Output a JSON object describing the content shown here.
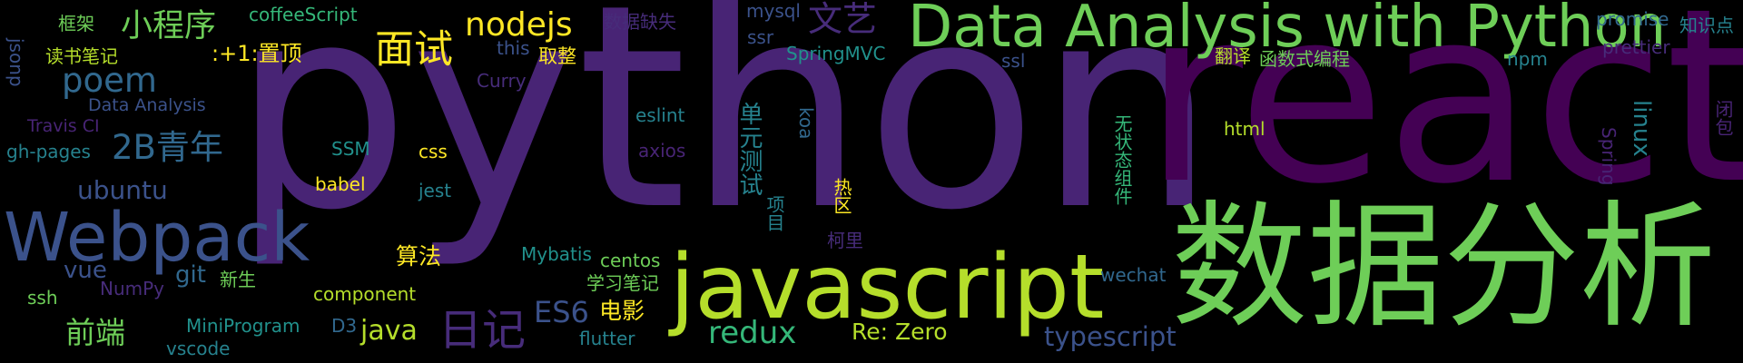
{
  "palette": {
    "background": "#000000",
    "dark_purple": "#482475",
    "deep_purple": "#440154",
    "purple": "#472c7a",
    "indigo": "#3b528b",
    "blue": "#31688e",
    "teal": "#26828e",
    "teal_green": "#21918c",
    "green": "#35b779",
    "light_green": "#6ece58",
    "lime": "#b5de2b",
    "yellow": "#fde725"
  },
  "words": [
    {
      "text": "python",
      "color": "#482475"
    },
    {
      "text": "react",
      "color": "#440154"
    },
    {
      "text": "数据分析",
      "color": "#6ece58"
    },
    {
      "text": "javascript",
      "color": "#b5de2b"
    },
    {
      "text": "Data Analysis with Python",
      "color": "#6ece58"
    },
    {
      "text": "Webpack",
      "color": "#3b528b"
    },
    {
      "text": "poem",
      "color": "#31688e"
    },
    {
      "text": "面试",
      "color": "#fde725"
    },
    {
      "text": "nodejs",
      "color": "#fde725"
    },
    {
      "text": "小程序",
      "color": "#6ece58"
    },
    {
      "text": "文艺",
      "color": "#472c7a"
    },
    {
      "text": "2B青年",
      "color": "#31688e"
    },
    {
      "text": "日记",
      "color": "#472c7a"
    },
    {
      "text": "ES6",
      "color": "#3b528b"
    },
    {
      "text": "redux",
      "color": "#35b779"
    },
    {
      "text": "java",
      "color": "#b5de2b"
    },
    {
      "text": "typescript",
      "color": "#3b528b"
    },
    {
      "text": "Re: Zero",
      "color": "#b5de2b"
    },
    {
      "text": "前端",
      "color": "#6ece58"
    },
    {
      "text": "ubuntu",
      "color": "#3b528b"
    },
    {
      "text": "vue",
      "color": "#3b528b"
    },
    {
      "text": "git",
      "color": "#31688e"
    },
    {
      "text": "算法",
      "color": "#fde725"
    },
    {
      "text": "电影",
      "color": "#fde725"
    },
    {
      "text": "框架",
      "color": "#6ece58"
    },
    {
      "text": "coffeeScript",
      "color": "#35b779"
    },
    {
      "text": "读书笔记",
      "color": "#b5de2b"
    },
    {
      "text": ":+1:置顶",
      "color": "#fde725"
    },
    {
      "text": "this",
      "color": "#3b528b"
    },
    {
      "text": "取整",
      "color": "#fde725"
    },
    {
      "text": "Curry",
      "color": "#472c7a"
    },
    {
      "text": "数据缺失",
      "color": "#472c7a"
    },
    {
      "text": "mysql",
      "color": "#3b528b"
    },
    {
      "text": "ssr",
      "color": "#3b528b"
    },
    {
      "text": "SpringMVC",
      "color": "#21918c"
    },
    {
      "text": "ssl",
      "color": "#3b528b"
    },
    {
      "text": "翻译",
      "color": "#b5de2b"
    },
    {
      "text": "函数式编程",
      "color": "#6ece58"
    },
    {
      "text": "npm",
      "color": "#26828e"
    },
    {
      "text": "promise",
      "color": "#31688e"
    },
    {
      "text": "知识点",
      "color": "#26828e"
    },
    {
      "text": "prettier",
      "color": "#472c7a"
    },
    {
      "text": "jsonp",
      "color": "#3b528b"
    },
    {
      "text": "Data Analysis",
      "color": "#3b528b"
    },
    {
      "text": "Travis CI",
      "color": "#482475"
    },
    {
      "text": "gh-pages",
      "color": "#26828e"
    },
    {
      "text": "SSM",
      "color": "#21918c"
    },
    {
      "text": "css",
      "color": "#fde725"
    },
    {
      "text": "eslint",
      "color": "#26828e"
    },
    {
      "text": "axios",
      "color": "#482475"
    },
    {
      "text": "单元测试",
      "color": "#26828e"
    },
    {
      "text": "koa",
      "color": "#31688e"
    },
    {
      "text": "项目",
      "color": "#26828e"
    },
    {
      "text": "html",
      "color": "#b5de2b"
    },
    {
      "text": "无状态组件",
      "color": "#35b779"
    },
    {
      "text": "热区",
      "color": "#fde725"
    },
    {
      "text": "柯里",
      "color": "#472c7a"
    },
    {
      "text": "linux",
      "color": "#26828e"
    },
    {
      "text": "Spring",
      "color": "#482475"
    },
    {
      "text": "闭包",
      "color": "#482475"
    },
    {
      "text": "babel",
      "color": "#fde725"
    },
    {
      "text": "jest",
      "color": "#26828e"
    },
    {
      "text": "Mybatis",
      "color": "#21918c"
    },
    {
      "text": "centos",
      "color": "#6ece58"
    },
    {
      "text": "学习笔记",
      "color": "#6ece58"
    },
    {
      "text": "wechat",
      "color": "#31688e"
    },
    {
      "text": "新生",
      "color": "#6ece58"
    },
    {
      "text": "ssh",
      "color": "#6ece58"
    },
    {
      "text": "NumPy",
      "color": "#472c7a"
    },
    {
      "text": "component",
      "color": "#b5de2b"
    },
    {
      "text": "MiniProgram",
      "color": "#21918c"
    },
    {
      "text": "D3",
      "color": "#31688e"
    },
    {
      "text": "vscode",
      "color": "#26828e"
    },
    {
      "text": "flutter",
      "color": "#26828e"
    }
  ]
}
